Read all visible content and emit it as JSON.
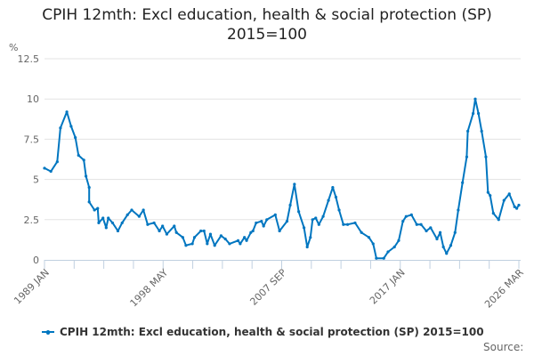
{
  "chart_data": {
    "type": "line",
    "title": "CPIH 12mth: Excl education, health & social protection (SP) 2015=100",
    "ylabel": "%",
    "xlabel": "",
    "ylim": [
      0,
      12.5
    ],
    "xlim": [
      "1989-01",
      "2026-03"
    ],
    "yticks": [
      "0",
      "2.5",
      "5",
      "7.5",
      "10",
      "12.5"
    ],
    "yticks_values": [
      0,
      2.5,
      5,
      7.5,
      10,
      12.5
    ],
    "xtick_labels": [
      "1989 JAN",
      "1998 MAY",
      "2007 SEP",
      "2017 JAN",
      "2026 MAR"
    ],
    "grid": true,
    "legend_position": "bottom",
    "series": [
      {
        "name": "CPIH 12mth: Excl education, health & social protection (SP) 2015=100",
        "color": "#0076c0",
        "points": [
          [
            "1989-01",
            5.7
          ],
          [
            "1989-07",
            5.5
          ],
          [
            "1990-01",
            6.1
          ],
          [
            "1990-04",
            8.2
          ],
          [
            "1990-10",
            9.2
          ],
          [
            "1991-02",
            8.3
          ],
          [
            "1991-06",
            7.6
          ],
          [
            "1991-09",
            6.5
          ],
          [
            "1992-02",
            6.2
          ],
          [
            "1992-04",
            5.2
          ],
          [
            "1992-07",
            4.5
          ],
          [
            "1992-07",
            3.6
          ],
          [
            "1992-12",
            3.1
          ],
          [
            "1993-03",
            3.2
          ],
          [
            "1993-04",
            2.3
          ],
          [
            "1993-08",
            2.6
          ],
          [
            "1993-11",
            2.0
          ],
          [
            "1994-01",
            2.6
          ],
          [
            "1994-05",
            2.3
          ],
          [
            "1994-10",
            1.8
          ],
          [
            "1995-02",
            2.3
          ],
          [
            "1995-07",
            2.8
          ],
          [
            "1995-11",
            3.1
          ],
          [
            "1996-06",
            2.7
          ],
          [
            "1996-10",
            3.1
          ],
          [
            "1997-02",
            2.2
          ],
          [
            "1997-08",
            2.3
          ],
          [
            "1998-01",
            1.8
          ],
          [
            "1998-04",
            2.1
          ],
          [
            "1998-08",
            1.6
          ],
          [
            "1999-03",
            2.1
          ],
          [
            "1999-05",
            1.7
          ],
          [
            "1999-11",
            1.4
          ],
          [
            "2000-02",
            0.9
          ],
          [
            "2000-08",
            1.0
          ],
          [
            "2000-10",
            1.4
          ],
          [
            "2001-04",
            1.8
          ],
          [
            "2001-07",
            1.8
          ],
          [
            "2001-10",
            1.0
          ],
          [
            "2002-01",
            1.6
          ],
          [
            "2002-05",
            0.9
          ],
          [
            "2002-11",
            1.5
          ],
          [
            "2003-03",
            1.3
          ],
          [
            "2003-07",
            1.0
          ],
          [
            "2004-03",
            1.2
          ],
          [
            "2004-05",
            1.0
          ],
          [
            "2004-09",
            1.4
          ],
          [
            "2004-11",
            1.2
          ],
          [
            "2005-03",
            1.7
          ],
          [
            "2005-05",
            1.8
          ],
          [
            "2005-08",
            2.3
          ],
          [
            "2006-01",
            2.4
          ],
          [
            "2006-03",
            2.1
          ],
          [
            "2006-06",
            2.5
          ],
          [
            "2007-02",
            2.8
          ],
          [
            "2007-06",
            1.8
          ],
          [
            "2008-01",
            2.4
          ],
          [
            "2008-04",
            3.4
          ],
          [
            "2008-08",
            4.7
          ],
          [
            "2008-12",
            3.0
          ],
          [
            "2009-05",
            2.0
          ],
          [
            "2009-08",
            0.8
          ],
          [
            "2009-11",
            1.4
          ],
          [
            "2010-01",
            2.5
          ],
          [
            "2010-04",
            2.6
          ],
          [
            "2010-07",
            2.2
          ],
          [
            "2010-11",
            2.7
          ],
          [
            "2011-04",
            3.7
          ],
          [
            "2011-08",
            4.5
          ],
          [
            "2011-11",
            3.9
          ],
          [
            "2012-02",
            3.1
          ],
          [
            "2012-06",
            2.2
          ],
          [
            "2012-10",
            2.2
          ],
          [
            "2013-05",
            2.3
          ],
          [
            "2013-11",
            1.7
          ],
          [
            "2014-06",
            1.4
          ],
          [
            "2014-10",
            1.0
          ],
          [
            "2015-01",
            0.1
          ],
          [
            "2015-08",
            0.1
          ],
          [
            "2015-12",
            0.5
          ],
          [
            "2016-06",
            0.8
          ],
          [
            "2016-10",
            1.2
          ],
          [
            "2017-02",
            2.4
          ],
          [
            "2017-05",
            2.7
          ],
          [
            "2017-10",
            2.8
          ],
          [
            "2018-03",
            2.2
          ],
          [
            "2018-07",
            2.2
          ],
          [
            "2018-12",
            1.8
          ],
          [
            "2019-04",
            2.0
          ],
          [
            "2019-10",
            1.3
          ],
          [
            "2020-01",
            1.7
          ],
          [
            "2020-04",
            0.8
          ],
          [
            "2020-07",
            0.4
          ],
          [
            "2020-11",
            0.9
          ],
          [
            "2021-03",
            1.7
          ],
          [
            "2021-06",
            3.1
          ],
          [
            "2021-10",
            4.8
          ],
          [
            "2022-02",
            6.4
          ],
          [
            "2022-03",
            8.0
          ],
          [
            "2022-08",
            9.1
          ],
          [
            "2022-10",
            10.0
          ],
          [
            "2023-01",
            9.1
          ],
          [
            "2023-04",
            8.0
          ],
          [
            "2023-08",
            6.4
          ],
          [
            "2023-10",
            4.2
          ],
          [
            "2023-12",
            4.0
          ],
          [
            "2024-03",
            2.9
          ],
          [
            "2024-08",
            2.5
          ],
          [
            "2025-01",
            3.7
          ],
          [
            "2025-06",
            4.1
          ],
          [
            "2025-11",
            3.3
          ],
          [
            "2026-01",
            3.2
          ],
          [
            "2026-03",
            3.4
          ]
        ]
      }
    ],
    "source_label": "Source:"
  }
}
